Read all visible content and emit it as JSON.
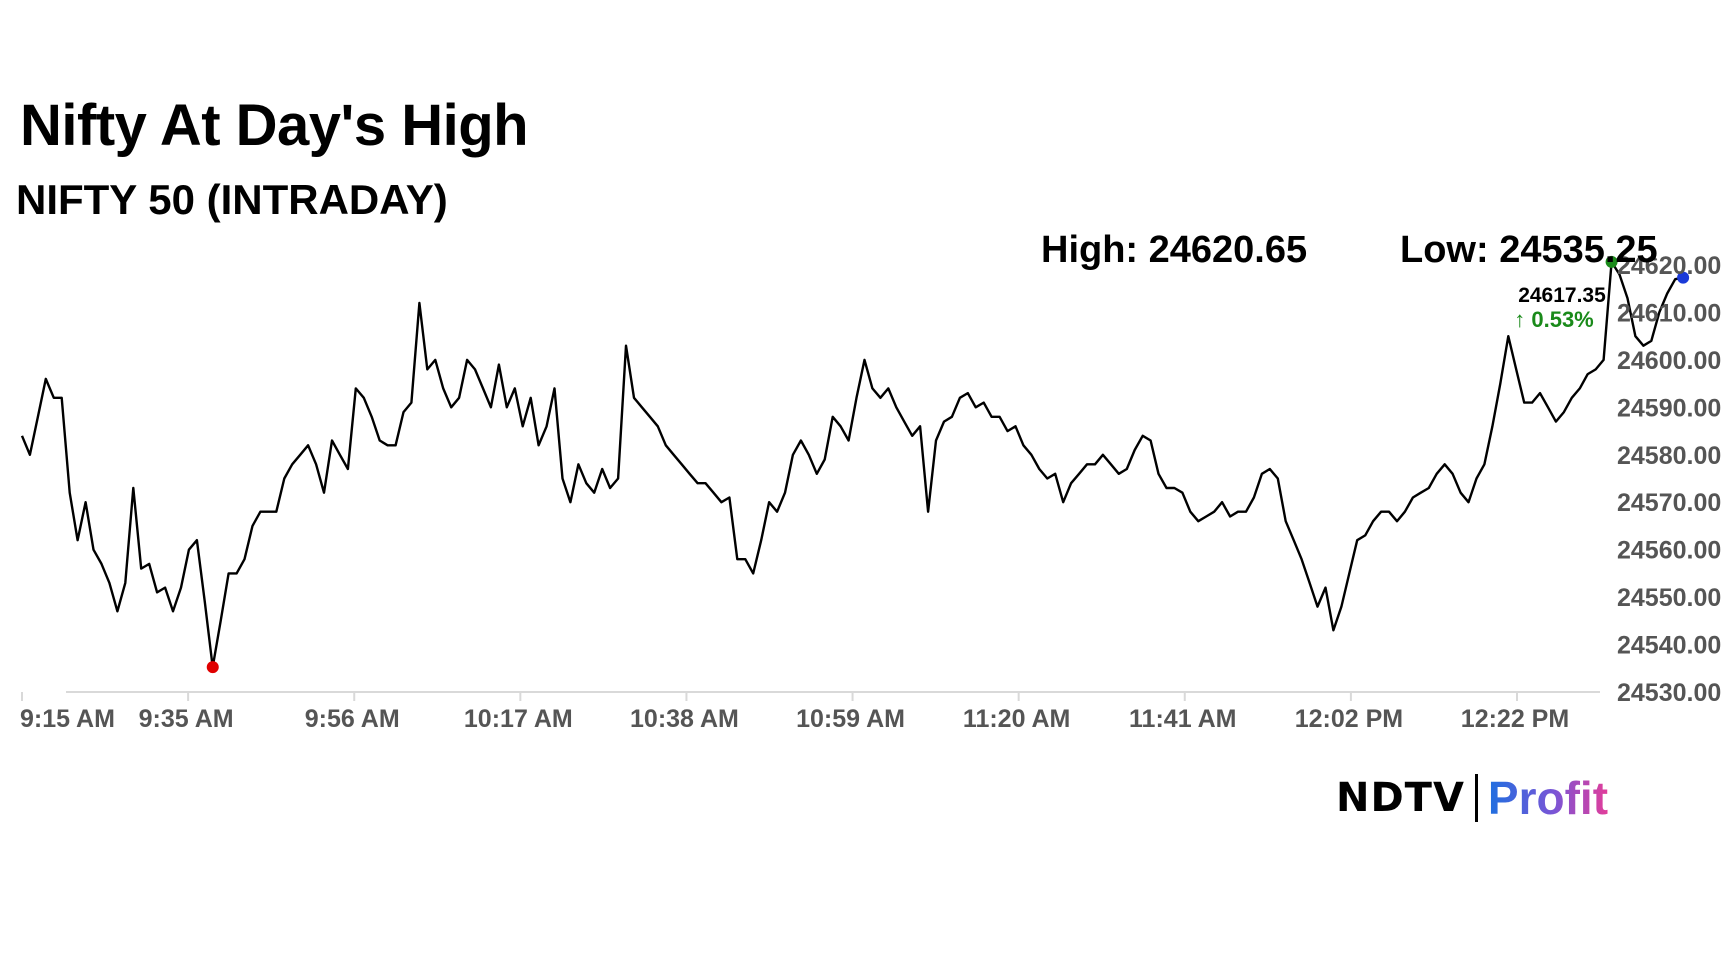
{
  "header": {
    "title": "Nifty At Day's High",
    "subtitle": "NIFTY 50 (INTRADAY)"
  },
  "stats": {
    "high": "High: 24620.65",
    "low": "Low: 24535.25"
  },
  "latest": {
    "price": "24617.35",
    "change": "↑ 0.53%"
  },
  "logo": {
    "brand": "NDTV",
    "product": "Profit"
  },
  "colors": {
    "line": "#000000",
    "low_marker": "#e00000",
    "high_marker": "#1a8a1a",
    "last_marker": "#1a3ad8",
    "change_up": "#1a8a1a",
    "axis": "#d9d9d9"
  },
  "chart_data": {
    "type": "line",
    "title": "NIFTY 50 (INTRADAY)",
    "xlabel": "",
    "ylabel": "",
    "x_ticks": [
      "9:15 AM",
      "9:35 AM",
      "9:56 AM",
      "10:17 AM",
      "10:38 AM",
      "10:59 AM",
      "11:20 AM",
      "11:41 AM",
      "12:02 PM",
      "12:22 PM"
    ],
    "y_ticks": [
      "24530.00",
      "24540.00",
      "24550.00",
      "24560.00",
      "24570.00",
      "24580.00",
      "24590.00",
      "24600.00",
      "24610.00",
      "24620.00"
    ],
    "ylim": [
      24530,
      24620
    ],
    "grid": false,
    "y_axis_side": "right",
    "series": [
      {
        "points": [
          [
            "9:15",
            24584
          ],
          [
            "9:16",
            24580
          ],
          [
            "9:17",
            24588
          ],
          [
            "9:18",
            24596
          ],
          [
            "9:19",
            24592
          ],
          [
            "9:20",
            24592
          ],
          [
            "9:21",
            24572
          ],
          [
            "9:22",
            24562
          ],
          [
            "9:23",
            24570
          ],
          [
            "9:24",
            24560
          ],
          [
            "9:25",
            24557
          ],
          [
            "9:26",
            24553
          ],
          [
            "9:27",
            24547
          ],
          [
            "9:28",
            24553
          ],
          [
            "9:29",
            24573
          ],
          [
            "9:30",
            24556
          ],
          [
            "9:31",
            24557
          ],
          [
            "9:32",
            24551
          ],
          [
            "9:33",
            24552
          ],
          [
            "9:34",
            24547
          ],
          [
            "9:35",
            24552
          ],
          [
            "9:36",
            24560
          ],
          [
            "9:37",
            24562
          ],
          [
            "9:38",
            24549
          ],
          [
            "9:39",
            24535.25
          ],
          [
            "9:40",
            24545
          ],
          [
            "9:41",
            24555
          ],
          [
            "9:42",
            24555
          ],
          [
            "9:43",
            24558
          ],
          [
            "9:44",
            24565
          ],
          [
            "9:45",
            24568
          ],
          [
            "9:46",
            24568
          ],
          [
            "9:47",
            24568
          ],
          [
            "9:48",
            24575
          ],
          [
            "9:49",
            24578
          ],
          [
            "9:50",
            24580
          ],
          [
            "9:51",
            24582
          ],
          [
            "9:52",
            24578
          ],
          [
            "9:53",
            24572
          ],
          [
            "9:54",
            24583
          ],
          [
            "9:55",
            24580
          ],
          [
            "9:56",
            24577
          ],
          [
            "9:57",
            24594
          ],
          [
            "9:58",
            24592
          ],
          [
            "9:59",
            24588
          ],
          [
            "10:00",
            24583
          ],
          [
            "10:01",
            24582
          ],
          [
            "10:02",
            24582
          ],
          [
            "10:03",
            24589
          ],
          [
            "10:04",
            24591
          ],
          [
            "10:05",
            24612
          ],
          [
            "10:06",
            24598
          ],
          [
            "10:07",
            24600
          ],
          [
            "10:08",
            24594
          ],
          [
            "10:09",
            24590
          ],
          [
            "10:10",
            24592
          ],
          [
            "10:11",
            24600
          ],
          [
            "10:12",
            24598
          ],
          [
            "10:13",
            24594
          ],
          [
            "10:14",
            24590
          ],
          [
            "10:15",
            24599
          ],
          [
            "10:16",
            24590
          ],
          [
            "10:17",
            24594
          ],
          [
            "10:18",
            24586
          ],
          [
            "10:19",
            24592
          ],
          [
            "10:20",
            24582
          ],
          [
            "10:21",
            24586
          ],
          [
            "10:22",
            24594
          ],
          [
            "10:23",
            24575
          ],
          [
            "10:24",
            24570
          ],
          [
            "10:25",
            24578
          ],
          [
            "10:26",
            24574
          ],
          [
            "10:27",
            24572
          ],
          [
            "10:28",
            24577
          ],
          [
            "10:29",
            24573
          ],
          [
            "10:30",
            24575
          ],
          [
            "10:31",
            24603
          ],
          [
            "10:32",
            24592
          ],
          [
            "10:33",
            24590
          ],
          [
            "10:34",
            24588
          ],
          [
            "10:35",
            24586
          ],
          [
            "10:36",
            24582
          ],
          [
            "10:37",
            24580
          ],
          [
            "10:38",
            24578
          ],
          [
            "10:39",
            24576
          ],
          [
            "10:40",
            24574
          ],
          [
            "10:41",
            24574
          ],
          [
            "10:42",
            24572
          ],
          [
            "10:43",
            24570
          ],
          [
            "10:44",
            24571
          ],
          [
            "10:45",
            24558
          ],
          [
            "10:46",
            24558
          ],
          [
            "10:47",
            24555
          ],
          [
            "10:48",
            24562
          ],
          [
            "10:49",
            24570
          ],
          [
            "10:50",
            24568
          ],
          [
            "10:51",
            24572
          ],
          [
            "10:52",
            24580
          ],
          [
            "10:53",
            24583
          ],
          [
            "10:54",
            24580
          ],
          [
            "10:55",
            24576
          ],
          [
            "10:56",
            24579
          ],
          [
            "10:57",
            24588
          ],
          [
            "10:58",
            24586
          ],
          [
            "10:59",
            24583
          ],
          [
            "11:00",
            24592
          ],
          [
            "11:01",
            24600
          ],
          [
            "11:02",
            24594
          ],
          [
            "11:03",
            24592
          ],
          [
            "11:04",
            24594
          ],
          [
            "11:05",
            24590
          ],
          [
            "11:06",
            24587
          ],
          [
            "11:07",
            24584
          ],
          [
            "11:08",
            24586
          ],
          [
            "11:09",
            24568
          ],
          [
            "11:10",
            24583
          ],
          [
            "11:11",
            24587
          ],
          [
            "11:12",
            24588
          ],
          [
            "11:13",
            24592
          ],
          [
            "11:14",
            24593
          ],
          [
            "11:15",
            24590
          ],
          [
            "11:16",
            24591
          ],
          [
            "11:17",
            24588
          ],
          [
            "11:18",
            24588
          ],
          [
            "11:19",
            24585
          ],
          [
            "11:20",
            24586
          ],
          [
            "11:21",
            24582
          ],
          [
            "11:22",
            24580
          ],
          [
            "11:23",
            24577
          ],
          [
            "11:24",
            24575
          ],
          [
            "11:25",
            24576
          ],
          [
            "11:26",
            24570
          ],
          [
            "11:27",
            24574
          ],
          [
            "11:28",
            24576
          ],
          [
            "11:29",
            24578
          ],
          [
            "11:30",
            24578
          ],
          [
            "11:31",
            24580
          ],
          [
            "11:32",
            24578
          ],
          [
            "11:33",
            24576
          ],
          [
            "11:34",
            24577
          ],
          [
            "11:35",
            24581
          ],
          [
            "11:36",
            24584
          ],
          [
            "11:37",
            24583
          ],
          [
            "11:38",
            24576
          ],
          [
            "11:39",
            24573
          ],
          [
            "11:40",
            24573
          ],
          [
            "11:41",
            24572
          ],
          [
            "11:42",
            24568
          ],
          [
            "11:43",
            24566
          ],
          [
            "11:44",
            24567
          ],
          [
            "11:45",
            24568
          ],
          [
            "11:46",
            24570
          ],
          [
            "11:47",
            24567
          ],
          [
            "11:48",
            24568
          ],
          [
            "11:49",
            24568
          ],
          [
            "11:50",
            24571
          ],
          [
            "11:51",
            24576
          ],
          [
            "11:52",
            24577
          ],
          [
            "11:53",
            24575
          ],
          [
            "11:54",
            24566
          ],
          [
            "11:55",
            24562
          ],
          [
            "11:56",
            24558
          ],
          [
            "11:57",
            24553
          ],
          [
            "11:58",
            24548
          ],
          [
            "11:59",
            24552
          ],
          [
            "12:00",
            24543
          ],
          [
            "12:01",
            24548
          ],
          [
            "12:02",
            24555
          ],
          [
            "12:03",
            24562
          ],
          [
            "12:04",
            24563
          ],
          [
            "12:05",
            24566
          ],
          [
            "12:06",
            24568
          ],
          [
            "12:07",
            24568
          ],
          [
            "12:08",
            24566
          ],
          [
            "12:09",
            24568
          ],
          [
            "12:10",
            24571
          ],
          [
            "12:11",
            24572
          ],
          [
            "12:12",
            24573
          ],
          [
            "12:13",
            24576
          ],
          [
            "12:14",
            24578
          ],
          [
            "12:15",
            24576
          ],
          [
            "12:16",
            24572
          ],
          [
            "12:17",
            24570
          ],
          [
            "12:18",
            24575
          ],
          [
            "12:19",
            24578
          ],
          [
            "12:20",
            24586
          ],
          [
            "12:21",
            24595
          ],
          [
            "12:22",
            24605
          ],
          [
            "12:23",
            24598
          ],
          [
            "12:24",
            24591
          ],
          [
            "12:25",
            24591
          ],
          [
            "12:26",
            24593
          ],
          [
            "12:27",
            24590
          ],
          [
            "12:28",
            24587
          ],
          [
            "12:29",
            24589
          ],
          [
            "12:30",
            24592
          ],
          [
            "12:31",
            24594
          ],
          [
            "12:32",
            24597
          ],
          [
            "12:33",
            24598
          ],
          [
            "12:34",
            24600
          ],
          [
            "12:35",
            24620.65
          ],
          [
            "12:36",
            24618
          ],
          [
            "12:37",
            24613
          ],
          [
            "12:38",
            24605
          ],
          [
            "12:39",
            24603
          ],
          [
            "12:40",
            24604
          ],
          [
            "12:41",
            24610
          ],
          [
            "12:42",
            24614
          ],
          [
            "12:43",
            24617
          ],
          [
            "12:44",
            24617.35
          ]
        ]
      }
    ],
    "annotations": {
      "low_point": [
        "9:39",
        24535.25
      ],
      "high_point": [
        "12:35",
        24620.65
      ],
      "last_point": [
        "12:44",
        24617.35
      ]
    }
  }
}
